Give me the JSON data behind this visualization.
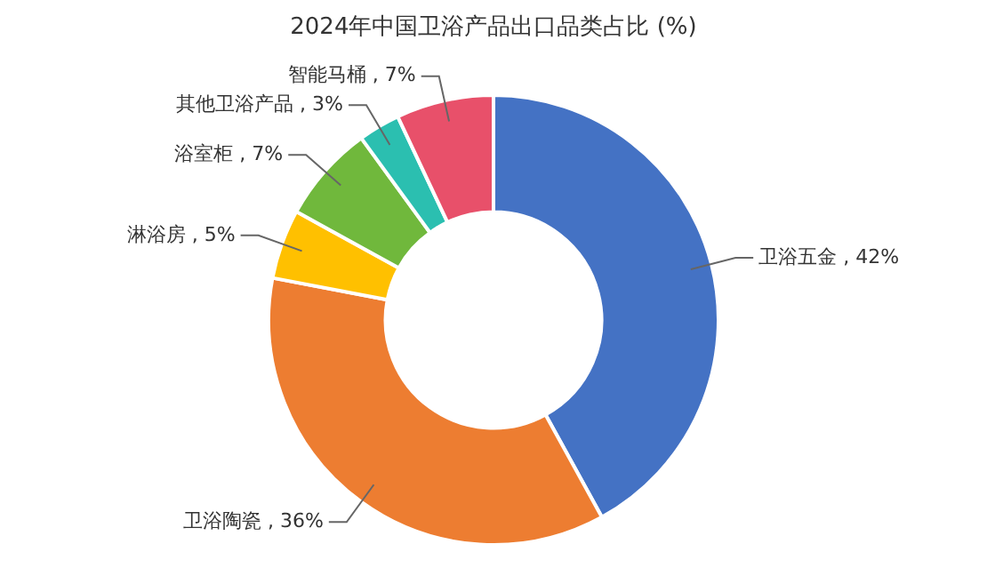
{
  "chart_data": {
    "type": "donut",
    "title": "2024年中国卫浴产品出口品类占比 (%)",
    "categories": [
      "卫浴五金",
      "卫浴陶瓷",
      "淋浴房",
      "浴室柜",
      "其他卫浴产品",
      "智能马桶"
    ],
    "values": [
      42,
      36,
      5,
      7,
      3,
      7
    ],
    "colors": [
      "#4472c4",
      "#ed7d31",
      "#ffc000",
      "#70b83c",
      "#2bbfb0",
      "#e8506a"
    ],
    "value_labels": [
      "42%",
      "36%",
      "5%",
      "7%",
      "3%",
      "7%"
    ],
    "legend": false
  }
}
